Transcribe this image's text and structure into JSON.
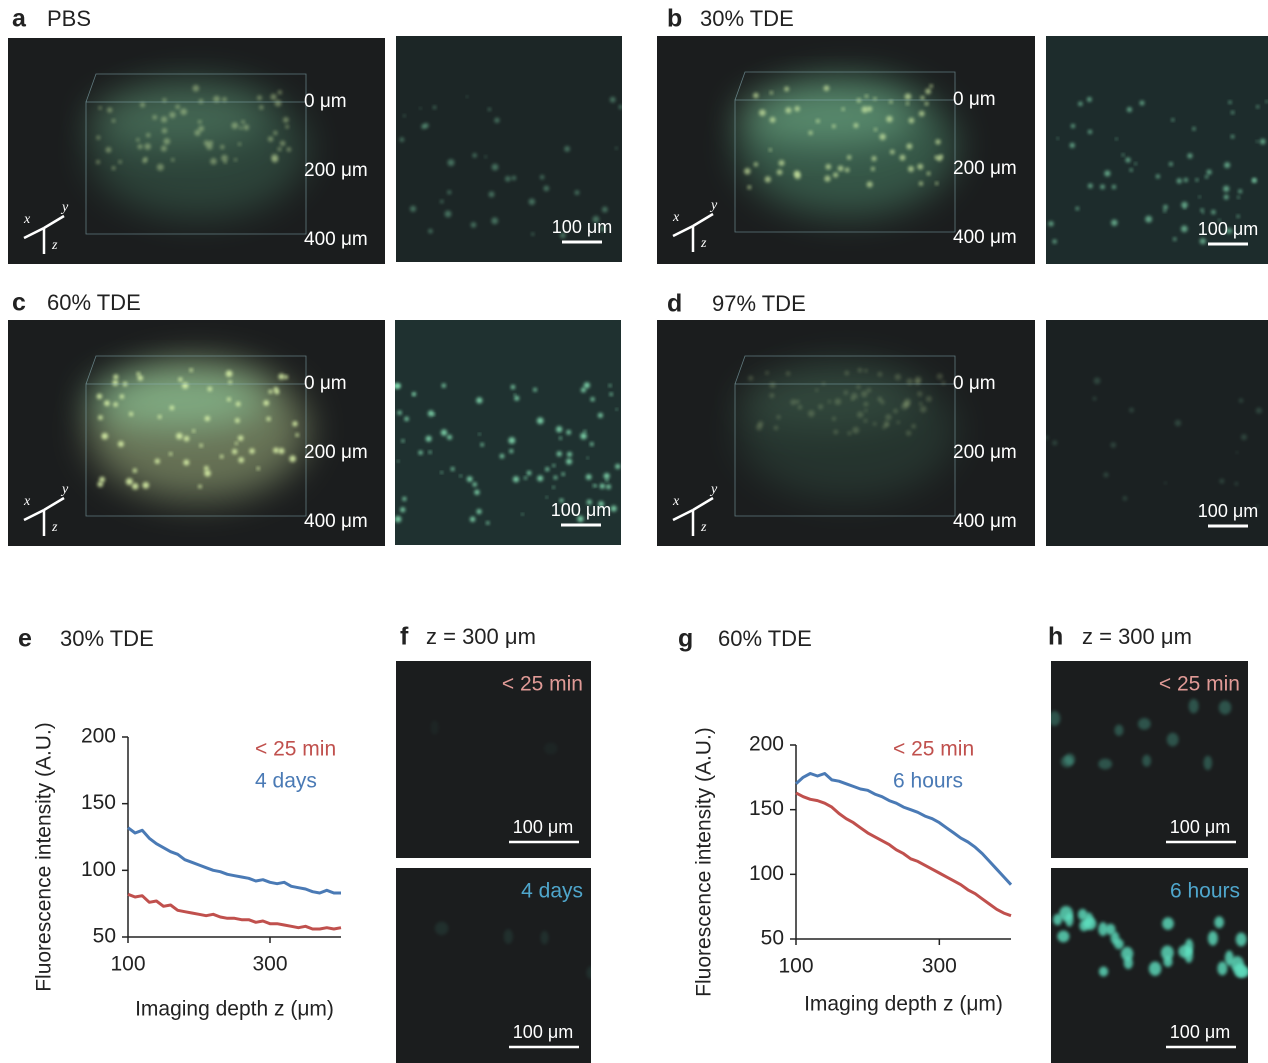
{
  "panels": [
    {
      "label": "a",
      "title": "PBS",
      "depth_labels": [
        "0 μm",
        "200 μm",
        "400 μm"
      ],
      "axes": [
        "x",
        "y",
        "z"
      ],
      "scale_bar": "100 μm"
    },
    {
      "label": "b",
      "title": "30% TDE",
      "depth_labels": [
        "0 μm",
        "200 μm",
        "400 μm"
      ],
      "axes": [
        "x",
        "y",
        "z"
      ],
      "scale_bar": "100 μm"
    },
    {
      "label": "c",
      "title": "60% TDE",
      "depth_labels": [
        "0 μm",
        "200 μm",
        "400 μm"
      ],
      "axes": [
        "x",
        "y",
        "z"
      ],
      "scale_bar": "100 μm"
    },
    {
      "label": "d",
      "title": "97% TDE",
      "depth_labels": [
        "0 μm",
        "200 μm",
        "400 μm"
      ],
      "axes": [
        "x",
        "y",
        "z"
      ],
      "scale_bar": "100 μm"
    }
  ],
  "image_panels": [
    {
      "label": "f",
      "title": "z = 300 μm",
      "images": [
        {
          "caption": "< 25 min",
          "scale_bar": "100 μm"
        },
        {
          "caption": "4 days",
          "scale_bar": "100 μm"
        }
      ]
    },
    {
      "label": "h",
      "title": "z = 300 μm",
      "images": [
        {
          "caption": "< 25 min",
          "scale_bar": "100 μm"
        },
        {
          "caption": "6 hours",
          "scale_bar": "100 μm"
        }
      ]
    }
  ],
  "chart_data": [
    {
      "type": "line",
      "panel_label": "e",
      "title": "30% TDE",
      "x_label": "Imaging depth  z (μm)",
      "y_label": "Fluorescence intensity (A.U.)",
      "x": [
        100,
        110,
        120,
        130,
        140,
        150,
        160,
        170,
        180,
        190,
        200,
        210,
        220,
        230,
        240,
        250,
        260,
        270,
        280,
        290,
        300,
        310,
        320,
        330,
        340,
        350,
        360,
        370,
        380,
        390,
        400
      ],
      "xlim": [
        100,
        400
      ],
      "xticks": [
        100,
        300
      ],
      "ylim": [
        50,
        200
      ],
      "yticks": [
        50,
        100,
        150,
        200
      ],
      "series": [
        {
          "name": "< 25 min",
          "color": "#c0504d",
          "values": [
            82,
            80,
            81,
            76,
            77,
            73,
            74,
            70,
            69,
            68,
            67,
            66,
            67,
            65,
            64,
            64,
            63,
            63,
            61,
            62,
            60,
            60,
            59,
            58,
            57,
            58,
            56,
            56,
            57,
            56,
            57
          ]
        },
        {
          "name": "4 days",
          "color": "#4a7ab5",
          "values": [
            132,
            128,
            130,
            124,
            120,
            117,
            114,
            112,
            108,
            106,
            104,
            102,
            100,
            99,
            97,
            96,
            95,
            94,
            92,
            93,
            91,
            90,
            91,
            88,
            87,
            86,
            84,
            83,
            85,
            83,
            83
          ]
        }
      ]
    },
    {
      "type": "line",
      "panel_label": "g",
      "title": "60% TDE",
      "x_label": "Imaging depth  z (μm)",
      "y_label": "Fluorescence intensity (A.U.)",
      "x": [
        100,
        110,
        120,
        130,
        140,
        150,
        160,
        170,
        180,
        190,
        200,
        210,
        220,
        230,
        240,
        250,
        260,
        270,
        280,
        290,
        300,
        310,
        320,
        330,
        340,
        350,
        360,
        370,
        380,
        390,
        400
      ],
      "xlim": [
        100,
        400
      ],
      "xticks": [
        100,
        300
      ],
      "ylim": [
        50,
        200
      ],
      "yticks": [
        50,
        100,
        150,
        200
      ],
      "series": [
        {
          "name": "< 25 min",
          "color": "#c0504d",
          "values": [
            163,
            160,
            158,
            157,
            155,
            152,
            147,
            143,
            140,
            136,
            132,
            129,
            126,
            123,
            119,
            116,
            112,
            110,
            107,
            104,
            101,
            98,
            95,
            92,
            88,
            85,
            81,
            77,
            73,
            70,
            68
          ]
        },
        {
          "name": "6 hours",
          "color": "#4a7ab5",
          "values": [
            170,
            175,
            178,
            176,
            178,
            173,
            172,
            170,
            168,
            166,
            165,
            162,
            160,
            157,
            155,
            152,
            150,
            148,
            145,
            143,
            140,
            136,
            132,
            128,
            125,
            121,
            116,
            110,
            104,
            98,
            92
          ]
        }
      ]
    }
  ]
}
